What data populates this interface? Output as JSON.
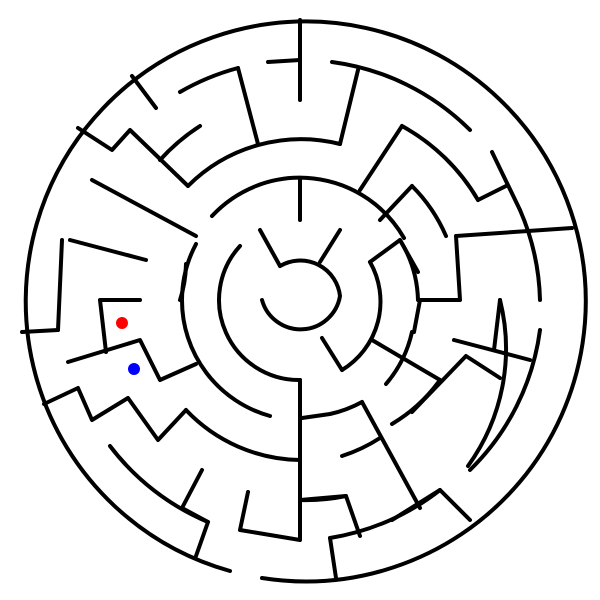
{
  "colors": {
    "background": "#ffffff",
    "wall": "#000000",
    "start_marker": "#ff0000",
    "goal_marker": "#0000ff"
  },
  "markers": [
    {
      "name": "start-marker",
      "color": "red"
    },
    {
      "name": "goal-marker",
      "color": "blue"
    }
  ]
}
